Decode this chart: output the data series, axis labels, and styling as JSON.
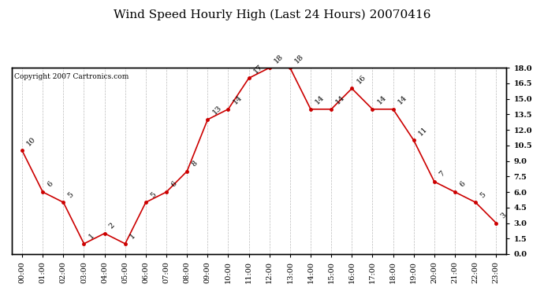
{
  "title": "Wind Speed Hourly High (Last 24 Hours) 20070416",
  "copyright": "Copyright 2007 Cartronics.com",
  "hours": [
    "00:00",
    "01:00",
    "02:00",
    "03:00",
    "04:00",
    "05:00",
    "06:00",
    "07:00",
    "08:00",
    "09:00",
    "10:00",
    "11:00",
    "12:00",
    "13:00",
    "14:00",
    "15:00",
    "16:00",
    "17:00",
    "18:00",
    "19:00",
    "20:00",
    "21:00",
    "22:00",
    "23:00"
  ],
  "y_vals": [
    10,
    6,
    5,
    1,
    2,
    1,
    5,
    6,
    8,
    13,
    14,
    17,
    18,
    18,
    14,
    14,
    16,
    14,
    14,
    11,
    7,
    6,
    5,
    3
  ],
  "ylim": [
    0.0,
    18.0
  ],
  "yticks": [
    0.0,
    1.5,
    3.0,
    4.5,
    6.0,
    7.5,
    9.0,
    10.5,
    12.0,
    13.5,
    15.0,
    16.5,
    18.0
  ],
  "line_color": "#cc0000",
  "bg_color": "#ffffff",
  "grid_color": "#bbbbbb",
  "title_fontsize": 11,
  "label_fontsize": 7,
  "tick_fontsize": 7,
  "copyright_fontsize": 6.5
}
